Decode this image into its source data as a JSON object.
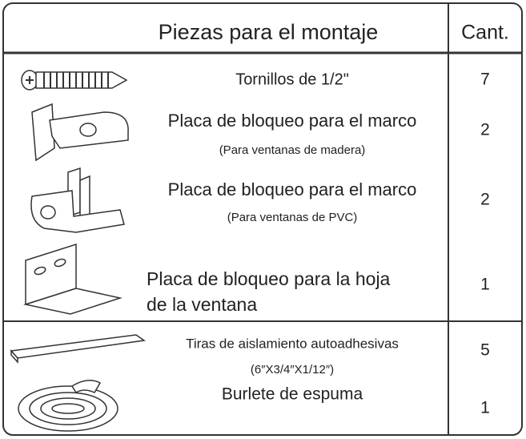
{
  "header": {
    "title": "Piezas para el montaje",
    "qty": "Cant."
  },
  "groups": [
    {
      "items": [
        {
          "name": "Tornillos de 1/2\"",
          "qty": 7
        },
        {
          "name": "Placa de bloqueo para el marco",
          "note": "(Para ventanas de madera)",
          "qty": 2
        },
        {
          "name": "Placa de bloqueo para el marco",
          "note": "(Para ventanas de PVC)",
          "qty": 2
        },
        {
          "name": "Placa de bloqueo para la hoja",
          "name_cont": "de la ventana",
          "qty": 1
        }
      ]
    },
    {
      "items": [
        {
          "name": "Tiras de aislamiento autoadhesivas",
          "note": "(6″X3/4″X1/12″)",
          "qty": 5
        },
        {
          "name": "Burlete de espuma",
          "qty": 1
        }
      ]
    }
  ]
}
